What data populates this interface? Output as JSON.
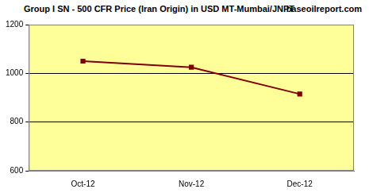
{
  "chart_data": {
    "type": "line",
    "title": "Group I SN - 500 CFR Price (Iran Origin) in USD MT-Mumbai/JNPT",
    "subtitle": "baseoilreport.com",
    "categories": [
      "Oct-12",
      "Nov-12",
      "Dec-12"
    ],
    "values": [
      1050,
      1025,
      915
    ],
    "color": "#800000",
    "marker": "square",
    "line_style": "solid",
    "ylim": [
      600,
      1200
    ],
    "yticks": [
      600,
      800,
      1000,
      1200
    ],
    "grid": true
  }
}
